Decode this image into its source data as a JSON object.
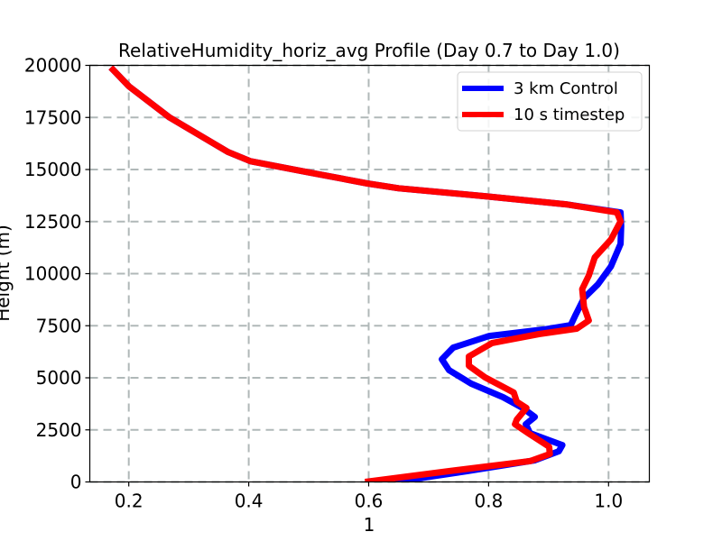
{
  "chart_data": {
    "type": "line",
    "title": "RelativeHumidity_horiz_avg Profile (Day 0.7 to Day 1.0)",
    "xlabel": "1",
    "ylabel": "Height (m)",
    "xlim": [
      0.135,
      1.068
    ],
    "ylim": [
      0,
      20000
    ],
    "xticks": [
      0.2,
      0.4,
      0.6,
      0.8,
      1.0
    ],
    "xtick_labels": [
      "0.2",
      "0.4",
      "0.6",
      "0.8",
      "1.0"
    ],
    "yticks": [
      0,
      2500,
      5000,
      7500,
      10000,
      12500,
      15000,
      17500,
      20000
    ],
    "ytick_labels": [
      "0",
      "2500",
      "5000",
      "7500",
      "10000",
      "12500",
      "15000",
      "17500",
      "20000"
    ],
    "grid": true,
    "legend_position": "upper right",
    "series": [
      {
        "name": "3 km Control",
        "color": "#0000ff",
        "points": [
          [
            0.644,
            0
          ],
          [
            0.764,
            520
          ],
          [
            0.877,
            1040
          ],
          [
            0.917,
            1470
          ],
          [
            0.923,
            1770
          ],
          [
            0.902,
            1990
          ],
          [
            0.869,
            2340
          ],
          [
            0.862,
            2770
          ],
          [
            0.877,
            3120
          ],
          [
            0.857,
            3550
          ],
          [
            0.824,
            4070
          ],
          [
            0.771,
            4720
          ],
          [
            0.734,
            5370
          ],
          [
            0.722,
            5890
          ],
          [
            0.741,
            6450
          ],
          [
            0.801,
            7010
          ],
          [
            0.892,
            7320
          ],
          [
            0.937,
            7530
          ],
          [
            0.944,
            7960
          ],
          [
            0.959,
            8830
          ],
          [
            0.982,
            9480
          ],
          [
            1.004,
            10350
          ],
          [
            1.02,
            11430
          ],
          [
            1.021,
            12290
          ],
          [
            1.02,
            12940
          ],
          [
            0.929,
            13330
          ],
          [
            0.794,
            13720
          ],
          [
            0.65,
            14100
          ],
          [
            0.598,
            14330
          ],
          [
            0.493,
            14900
          ],
          [
            0.403,
            15400
          ],
          [
            0.365,
            15850
          ],
          [
            0.268,
            17500
          ],
          [
            0.2,
            19000
          ],
          [
            0.17,
            19900
          ]
        ]
      },
      {
        "name": "10 s timestep",
        "color": "#ff0000",
        "points": [
          [
            0.594,
            0
          ],
          [
            0.734,
            520
          ],
          [
            0.869,
            1000
          ],
          [
            0.902,
            1340
          ],
          [
            0.901,
            1690
          ],
          [
            0.866,
            2340
          ],
          [
            0.844,
            2770
          ],
          [
            0.847,
            2990
          ],
          [
            0.863,
            3550
          ],
          [
            0.847,
            3850
          ],
          [
            0.842,
            4290
          ],
          [
            0.794,
            5020
          ],
          [
            0.767,
            5580
          ],
          [
            0.767,
            6020
          ],
          [
            0.806,
            6670
          ],
          [
            0.884,
            7100
          ],
          [
            0.947,
            7360
          ],
          [
            0.967,
            7750
          ],
          [
            0.959,
            8400
          ],
          [
            0.956,
            9260
          ],
          [
            0.967,
            9910
          ],
          [
            0.977,
            10780
          ],
          [
            1.004,
            11640
          ],
          [
            1.02,
            12510
          ],
          [
            1.014,
            12940
          ],
          [
            0.929,
            13330
          ],
          [
            0.794,
            13720
          ],
          [
            0.65,
            14100
          ],
          [
            0.598,
            14330
          ],
          [
            0.493,
            14900
          ],
          [
            0.403,
            15400
          ],
          [
            0.365,
            15850
          ],
          [
            0.268,
            17500
          ],
          [
            0.2,
            19000
          ],
          [
            0.17,
            19900
          ]
        ]
      }
    ]
  },
  "legend": {
    "items": [
      {
        "label": "3 km Control",
        "color": "#0000ff"
      },
      {
        "label": "10 s timestep",
        "color": "#ff0000"
      }
    ]
  }
}
